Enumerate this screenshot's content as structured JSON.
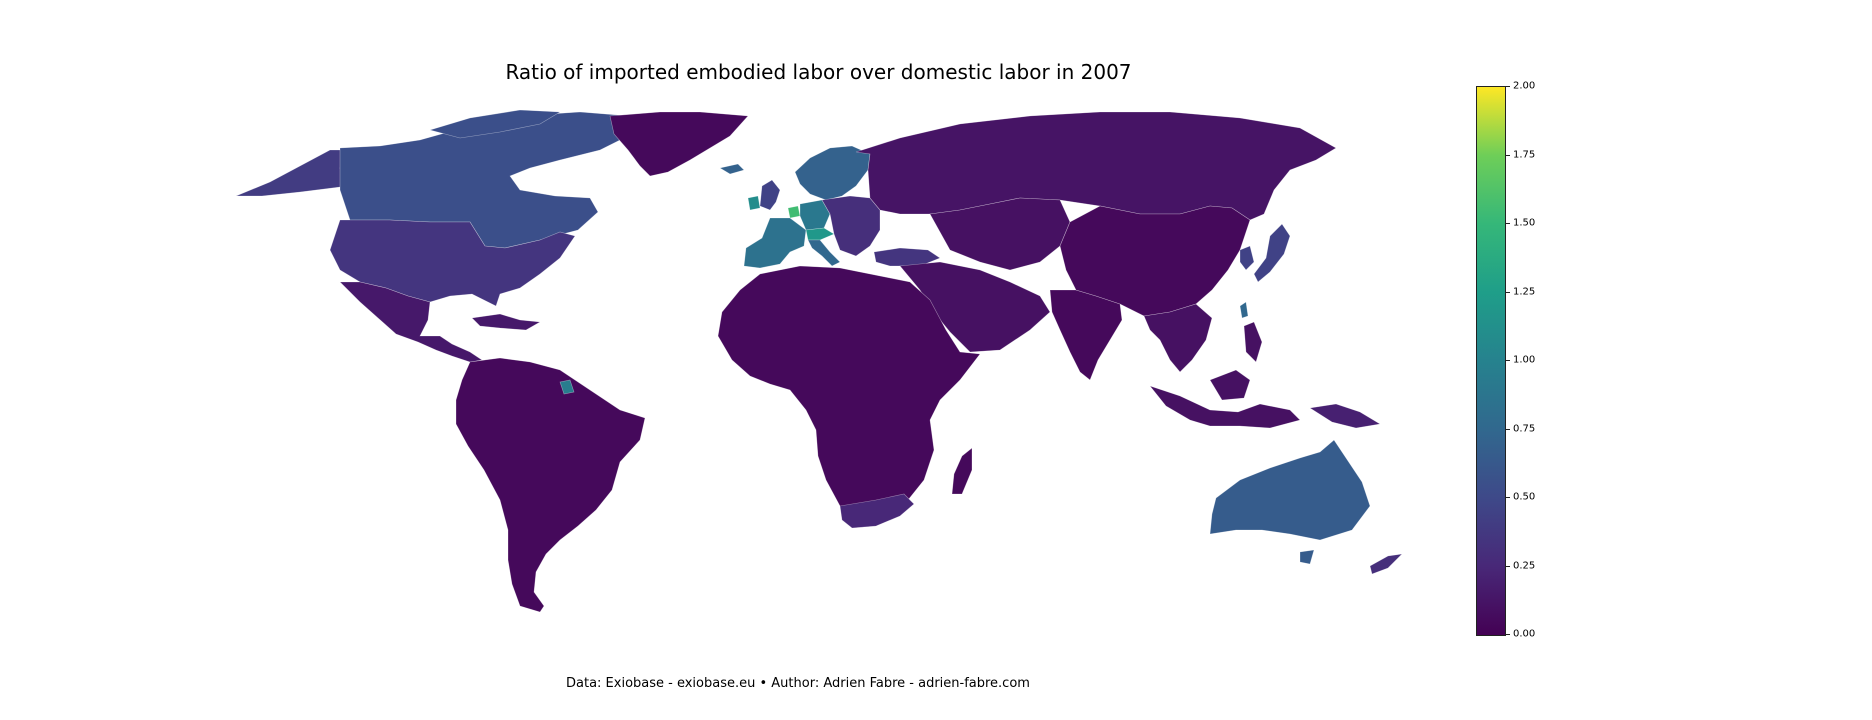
{
  "title": "Ratio of imported embodied labor over domestic labor in 2007",
  "credit": "Data: Exiobase - exiobase.eu • Author: Adrien Fabre - adrien-fabre.com",
  "colorbar": {
    "min": 0,
    "max": 2,
    "colormap": "viridis",
    "ticks": [
      "0.00",
      "0.25",
      "0.50",
      "0.75",
      "1.00",
      "1.25",
      "1.50",
      "1.75",
      "2.00"
    ]
  },
  "chart_data": {
    "type": "choropleth",
    "title": "Ratio of imported embodied labor over domestic labor in 2007",
    "scale": [
      0,
      2
    ],
    "regions": [
      {
        "region": "Canada",
        "value": 0.55
      },
      {
        "region": "Alaska",
        "value": 0.4
      },
      {
        "region": "Greenland",
        "value": 0.05
      },
      {
        "region": "United States",
        "value": 0.35
      },
      {
        "region": "Mexico & Central America",
        "value": 0.15
      },
      {
        "region": "Caribbean",
        "value": 0.15
      },
      {
        "region": "South America",
        "value": 0.05
      },
      {
        "region": "French Guiana",
        "value": 0.95
      },
      {
        "region": "Africa",
        "value": 0.05
      },
      {
        "region": "South Africa",
        "value": 0.25
      },
      {
        "region": "Madagascar",
        "value": 0.05
      },
      {
        "region": "Scandinavia",
        "value": 0.7
      },
      {
        "region": "United Kingdom",
        "value": 0.45
      },
      {
        "region": "Ireland",
        "value": 1.1
      },
      {
        "region": "France & Spain",
        "value": 0.85
      },
      {
        "region": "Belgium",
        "value": 1.55
      },
      {
        "region": "Germany",
        "value": 0.9
      },
      {
        "region": "Switzerland & Austria",
        "value": 1.2
      },
      {
        "region": "Italy",
        "value": 0.75
      },
      {
        "region": "Eastern Europe",
        "value": 0.3
      },
      {
        "region": "Turkey",
        "value": 0.35
      },
      {
        "region": "Russia",
        "value": 0.12
      },
      {
        "region": "Middle East",
        "value": 0.1
      },
      {
        "region": "India",
        "value": 0.05
      },
      {
        "region": "China",
        "value": 0.05
      },
      {
        "region": "Japan",
        "value": 0.45
      },
      {
        "region": "Korea",
        "value": 0.45
      },
      {
        "region": "Taiwan",
        "value": 0.75
      },
      {
        "region": "Southeast Asia",
        "value": 0.1
      },
      {
        "region": "Indonesia",
        "value": 0.1
      },
      {
        "region": "Papua New Guinea",
        "value": 0.2
      },
      {
        "region": "Australia",
        "value": 0.65
      },
      {
        "region": "New Zealand",
        "value": 0.3
      }
    ]
  }
}
